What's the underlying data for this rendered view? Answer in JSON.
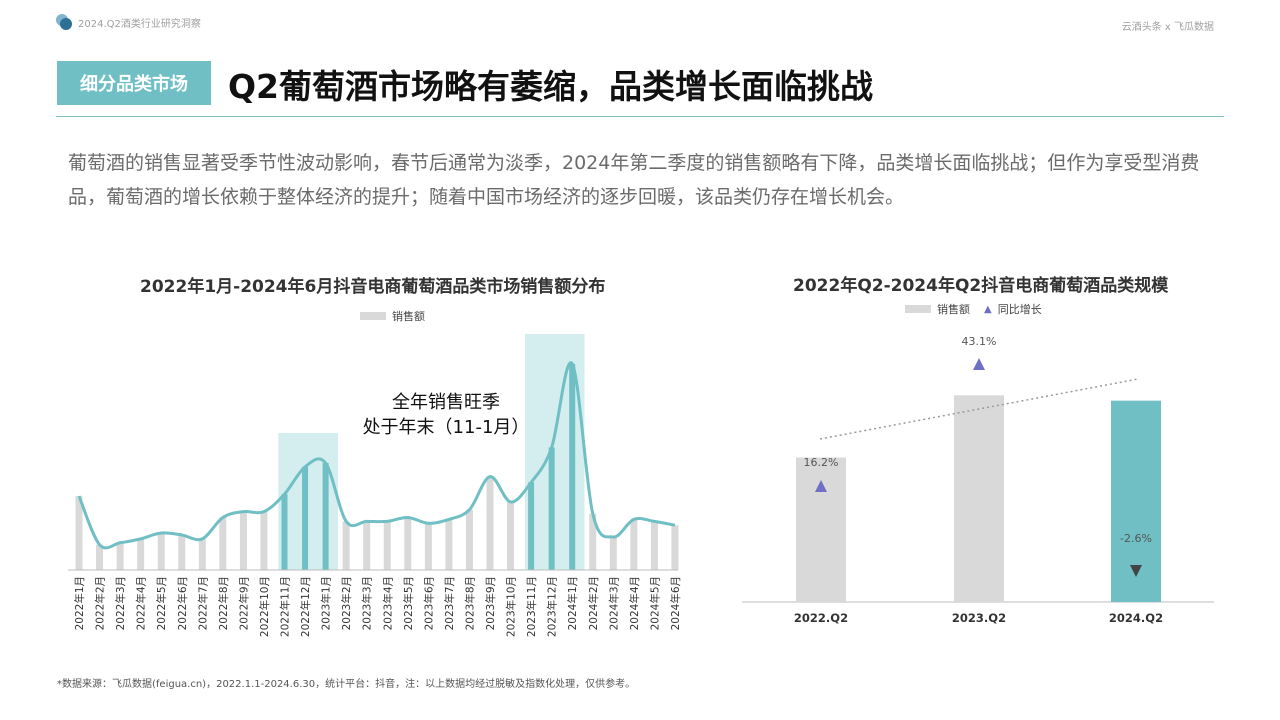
{
  "header": {
    "report_tag": "2024.Q2酒类行业研究洞察",
    "brand": "云酒头条 x 飞瓜数据"
  },
  "section_tag": "细分品类市场",
  "title": "Q2葡萄酒市场略有萎缩，品类增长面临挑战",
  "intro": "葡萄酒的销售显著受季节性波动影响，春节后通常为淡季，2024年第二季度的销售额略有下降，品类增长面临挑战；但作为享受型消费品，葡萄酒的增长依赖于整体经济的提升；随着中国市场经济的逐步回暖，该品类仍存在增长机会。",
  "footnote": "*数据来源：飞瓜数据(feigua.cn)，2022.1.1-2024.6.30，统计平台：抖音，注：以上数据均经过脱敏及指数化处理，仅供参考。",
  "colors": {
    "teal": "#6fbfc4",
    "gray_bar": "#d9d9d9",
    "highlight": "#d4edef",
    "triangle": "#6f6fc4"
  },
  "chart_data": [
    {
      "type": "bar",
      "title": "2022年1月-2024年6月抖音电商葡萄酒品类市场销售额分布",
      "legend": [
        "销售额"
      ],
      "annotation": "全年销售旺季\n处于年末（11-1月）",
      "categories": [
        "2022年1月",
        "2022年2月",
        "2022年3月",
        "2022年4月",
        "2022年5月",
        "2022年6月",
        "2022年7月",
        "2022年8月",
        "2022年9月",
        "2022年10月",
        "2022年11月",
        "2022年12月",
        "2023年1月",
        "2023年2月",
        "2023年3月",
        "2023年4月",
        "2023年5月",
        "2023年6月",
        "2023年7月",
        "2023年8月",
        "2023年9月",
        "2023年10月",
        "2023年11月",
        "2023年12月",
        "2024年1月",
        "2024年2月",
        "2024年3月",
        "2024年4月",
        "2024年5月",
        "2024年6月"
      ],
      "values": [
        38,
        13,
        14,
        16,
        19,
        18,
        16,
        27,
        30,
        30,
        39,
        53,
        55,
        25,
        25,
        25,
        27,
        24,
        26,
        31,
        48,
        35,
        45,
        63,
        106,
        29,
        17,
        26,
        25,
        23
      ],
      "highlighted": [
        "2022年11月",
        "2022年12月",
        "2023年1月",
        "2023年11月",
        "2023年12月",
        "2024年1月"
      ],
      "ylim": [
        0,
        110
      ]
    },
    {
      "type": "bar",
      "title": "2022年Q2-2024年Q2抖音电商葡萄酒品类规模",
      "legend": [
        "销售额",
        "同比增长"
      ],
      "categories": [
        "2022.Q2",
        "2023.Q2",
        "2024.Q2"
      ],
      "values": [
        100,
        143.1,
        139.4
      ],
      "yoy": [
        "16.2%",
        "43.1%",
        "-2.6%"
      ],
      "yoy_direction": [
        "up",
        "up",
        "down"
      ],
      "ylim": [
        0,
        180
      ]
    }
  ]
}
